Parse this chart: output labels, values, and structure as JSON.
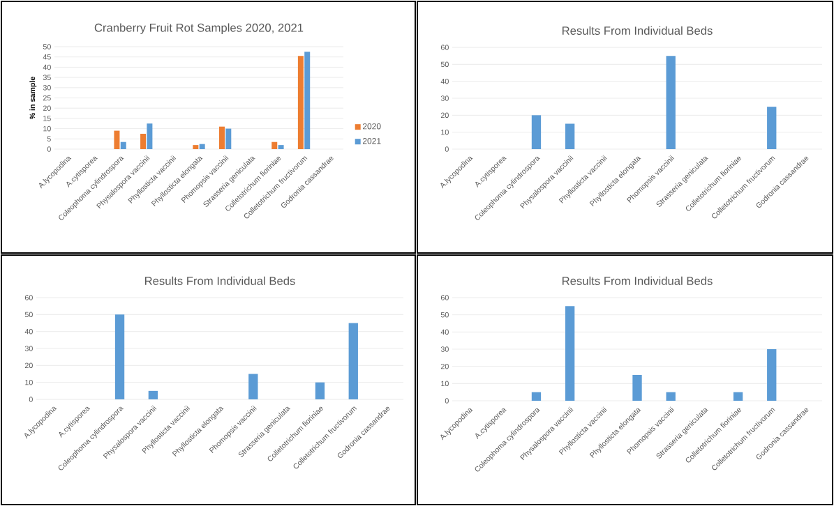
{
  "chart_data": [
    {
      "type": "bar",
      "title": "Cranberry Fruit Rot Samples 2020, 2021",
      "ylabel": "% in sample",
      "categories": [
        "A.lycopodina",
        "A.cytisporea",
        "Coleophoma cylindrospora",
        "Physalospora vaccinii",
        "Phyllosticta vaccinii",
        "Phyllosticta elongata",
        "Phomopsis vaccinii",
        "Strasseria geniculata",
        "Colletotrichum fioriniae",
        "Colletotrichum fructivorum",
        "Godronia cassandrae"
      ],
      "series": [
        {
          "name": "2020",
          "color": "#ed7d31",
          "values": [
            0,
            0,
            9,
            7.5,
            0,
            2,
            11,
            0,
            3.5,
            45.5,
            0
          ]
        },
        {
          "name": "2021",
          "color": "#5b9bd5",
          "values": [
            0,
            0,
            3.5,
            12.5,
            0,
            2.5,
            10,
            0,
            2,
            47.5,
            0
          ]
        }
      ],
      "ylim": [
        0,
        50
      ],
      "yticks": [
        0,
        5,
        10,
        15,
        20,
        25,
        30,
        35,
        40,
        45,
        50
      ],
      "grid": "y",
      "legend": "right"
    },
    {
      "type": "bar",
      "title": "Results From Individual Beds",
      "categories": [
        "A.lycopodina",
        "A.cytisporea",
        "Coleophoma cylindrospora",
        "Physalospora vaccinii",
        "Phyllosticta vaccinii",
        "Phyllosticta elongata",
        "Phomopsis vaccinii",
        "Strasseria geniculata",
        "Colletotrichum fioriniae",
        "Colletotrichum fructivorum",
        "Godronia cassandrae"
      ],
      "values": [
        0,
        0,
        20,
        15,
        0,
        0,
        55,
        0,
        0,
        25,
        0
      ],
      "color": "#5b9bd5",
      "ylim": [
        0,
        60
      ],
      "yticks": [
        0,
        10,
        20,
        30,
        40,
        50,
        60
      ],
      "grid": "y"
    },
    {
      "type": "bar",
      "title": "Results From Individual Beds",
      "categories": [
        "A.lycopodina",
        "A.cytisporea",
        "Coleophoma cylindrospora",
        "Physalospora vaccinii",
        "Phyllosticta vaccinii",
        "Phyllosticta elongata",
        "Phomopsis vaccinii",
        "Strasseria geniculata",
        "Colletotrichum fioriniae",
        "Colletotrichum fructivorum",
        "Godronia cassandrae"
      ],
      "values": [
        0,
        0,
        50,
        5,
        0,
        0,
        15,
        0,
        10,
        45,
        0
      ],
      "color": "#5b9bd5",
      "ylim": [
        0,
        60
      ],
      "yticks": [
        0,
        10,
        20,
        30,
        40,
        50,
        60
      ],
      "grid": "y"
    },
    {
      "type": "bar",
      "title": "Results From Individual Beds",
      "categories": [
        "A.lycopodina",
        "A.cytisporea",
        "Coleophoma cylindrospora",
        "Physalospora vaccinii",
        "Phyllosticta vaccinii",
        "Phyllosticta elongata",
        "Phomopsis vaccinii",
        "Strasseria geniculata",
        "Colletotrichum fioriniae",
        "Colletotrichum fructivorum",
        "Godronia cassandrae"
      ],
      "values": [
        0,
        0,
        5,
        55,
        0,
        15,
        5,
        0,
        5,
        30,
        0
      ],
      "color": "#5b9bd5",
      "ylim": [
        0,
        60
      ],
      "yticks": [
        0,
        10,
        20,
        30,
        40,
        50,
        60
      ],
      "grid": "y"
    }
  ]
}
